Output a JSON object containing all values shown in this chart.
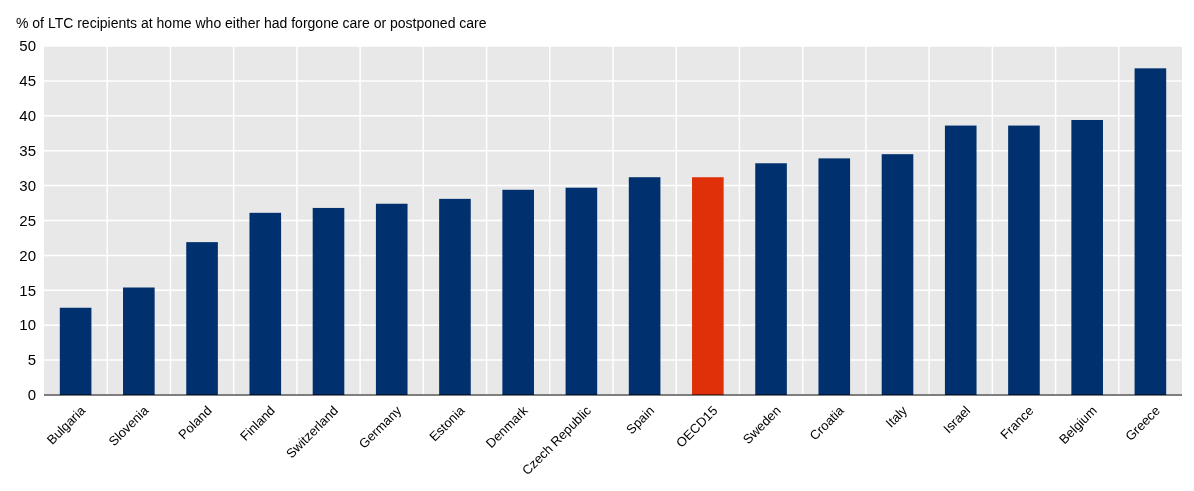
{
  "chart_data": {
    "type": "bar",
    "ylabel": "% of LTC recipients at home who either had forgone care or postponed care",
    "categories": [
      "Bulgaria",
      "Slovenia",
      "Poland",
      "Finland",
      "Switzerland",
      "Germany",
      "Estonia",
      "Denmark",
      "Czech Republic",
      "Spain",
      "OECD15",
      "Sweden",
      "Croatia",
      "Italy",
      "Israel",
      "France",
      "Belgium",
      "Greece"
    ],
    "values": [
      12.5,
      15.4,
      21.9,
      26.1,
      26.8,
      27.4,
      28.1,
      29.4,
      29.7,
      31.2,
      31.2,
      33.2,
      33.9,
      34.5,
      38.6,
      38.6,
      39.4,
      46.8
    ],
    "colors": [
      "#00306e",
      "#00306e",
      "#00306e",
      "#00306e",
      "#00306e",
      "#00306e",
      "#00306e",
      "#00306e",
      "#00306e",
      "#00306e",
      "#e0300a",
      "#00306e",
      "#00306e",
      "#00306e",
      "#00306e",
      "#00306e",
      "#00306e",
      "#00306e"
    ],
    "ylim": [
      0,
      50
    ],
    "yticks": [
      0,
      5,
      10,
      15,
      20,
      25,
      30,
      35,
      40,
      45,
      50
    ],
    "grid": true
  }
}
